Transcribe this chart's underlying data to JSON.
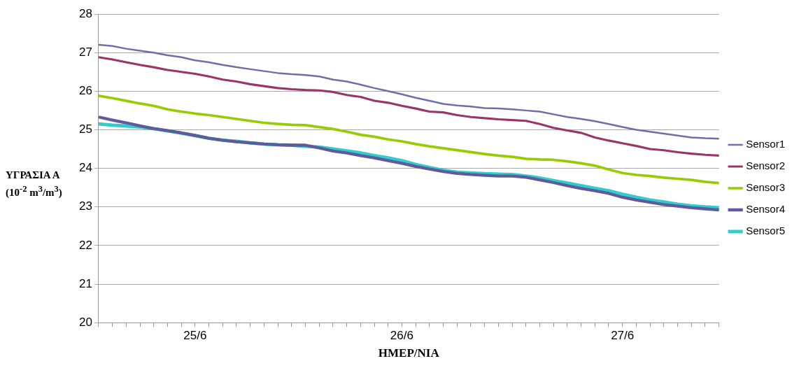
{
  "chart_data": {
    "type": "line",
    "xlabel": "ΗΜΕΡ/ΝΙΑ",
    "ylabel": "ΥΓΡΑΣΙΑ Α (10$^{-2}$ m$^{3}$/m$^{3}$)",
    "categories": [
      null,
      null,
      null,
      null,
      null,
      null,
      null,
      "25/6",
      null,
      null,
      null,
      null,
      null,
      null,
      null,
      null,
      null,
      null,
      null,
      null,
      null,
      null,
      "26/6",
      null,
      null,
      null,
      null,
      null,
      null,
      null,
      null,
      null,
      null,
      null,
      null,
      null,
      null,
      null,
      "27/6",
      null,
      null,
      null,
      null,
      null,
      null,
      null
    ],
    "ylim": [
      20,
      28
    ],
    "yticks": [
      20,
      21,
      22,
      23,
      24,
      25,
      26,
      27,
      28
    ],
    "grid": "y",
    "legend": "right",
    "marker": "none",
    "series": [
      {
        "name": "Sensor1",
        "color": "#6f6fa8",
        "values": [
          27.2,
          27.17,
          27.1,
          27.05,
          27.0,
          26.93,
          26.88,
          26.8,
          26.75,
          26.68,
          26.62,
          26.57,
          26.52,
          26.47,
          26.44,
          26.42,
          26.38,
          26.3,
          26.25,
          26.17,
          26.08,
          26.0,
          25.92,
          25.83,
          25.75,
          25.67,
          25.63,
          25.6,
          25.56,
          25.55,
          25.53,
          25.5,
          25.47,
          25.4,
          25.33,
          25.28,
          25.22,
          25.15,
          25.07,
          25.0,
          24.95,
          24.9,
          24.85,
          24.8,
          24.78,
          24.77
        ]
      },
      {
        "name": "Sensor2",
        "color": "#9b3566",
        "values": [
          26.88,
          26.82,
          26.75,
          26.68,
          26.62,
          26.55,
          26.5,
          26.45,
          26.38,
          26.3,
          26.25,
          26.18,
          26.13,
          26.08,
          26.05,
          26.03,
          26.02,
          25.98,
          25.9,
          25.85,
          25.75,
          25.7,
          25.62,
          25.55,
          25.47,
          25.45,
          25.38,
          25.33,
          25.3,
          25.27,
          25.25,
          25.23,
          25.15,
          25.05,
          24.98,
          24.92,
          24.8,
          24.72,
          24.65,
          24.58,
          24.5,
          24.47,
          24.42,
          24.38,
          24.35,
          24.33
        ]
      },
      {
        "name": "Sensor3",
        "color": "#99cc00",
        "values": [
          25.88,
          25.82,
          25.75,
          25.68,
          25.62,
          25.53,
          25.47,
          25.42,
          25.38,
          25.33,
          25.28,
          25.23,
          25.18,
          25.15,
          25.13,
          25.12,
          25.07,
          25.02,
          24.95,
          24.87,
          24.82,
          24.75,
          24.7,
          24.63,
          24.57,
          24.52,
          24.47,
          24.42,
          24.37,
          24.33,
          24.3,
          24.25,
          24.23,
          24.22,
          24.18,
          24.13,
          24.07,
          23.97,
          23.88,
          23.83,
          23.8,
          23.76,
          23.73,
          23.7,
          23.65,
          23.62
        ]
      },
      {
        "name": "Sensor4",
        "color": "#5f5a9c",
        "values": [
          25.33,
          25.25,
          25.18,
          25.1,
          25.03,
          24.98,
          24.92,
          24.85,
          24.78,
          24.73,
          24.69,
          24.66,
          24.63,
          24.61,
          24.6,
          24.6,
          24.53,
          24.45,
          24.4,
          24.33,
          24.27,
          24.2,
          24.13,
          24.05,
          23.98,
          23.92,
          23.87,
          23.84,
          23.82,
          23.8,
          23.8,
          23.77,
          23.7,
          23.63,
          23.55,
          23.48,
          23.42,
          23.35,
          23.25,
          23.18,
          23.12,
          23.06,
          23.02,
          22.98,
          22.95,
          22.92
        ]
      },
      {
        "name": "Sensor5",
        "color": "#33cccc",
        "values": [
          25.15,
          25.12,
          25.1,
          25.07,
          25.03,
          24.97,
          24.91,
          24.85,
          24.78,
          24.73,
          24.7,
          24.66,
          24.63,
          24.61,
          24.6,
          24.57,
          24.55,
          24.5,
          24.45,
          24.4,
          24.33,
          24.27,
          24.2,
          24.1,
          24.02,
          23.95,
          23.9,
          23.88,
          23.86,
          23.85,
          23.84,
          23.8,
          23.75,
          23.68,
          23.62,
          23.55,
          23.48,
          23.42,
          23.33,
          23.25,
          23.18,
          23.13,
          23.07,
          23.03,
          23.0,
          22.98
        ]
      }
    ]
  }
}
